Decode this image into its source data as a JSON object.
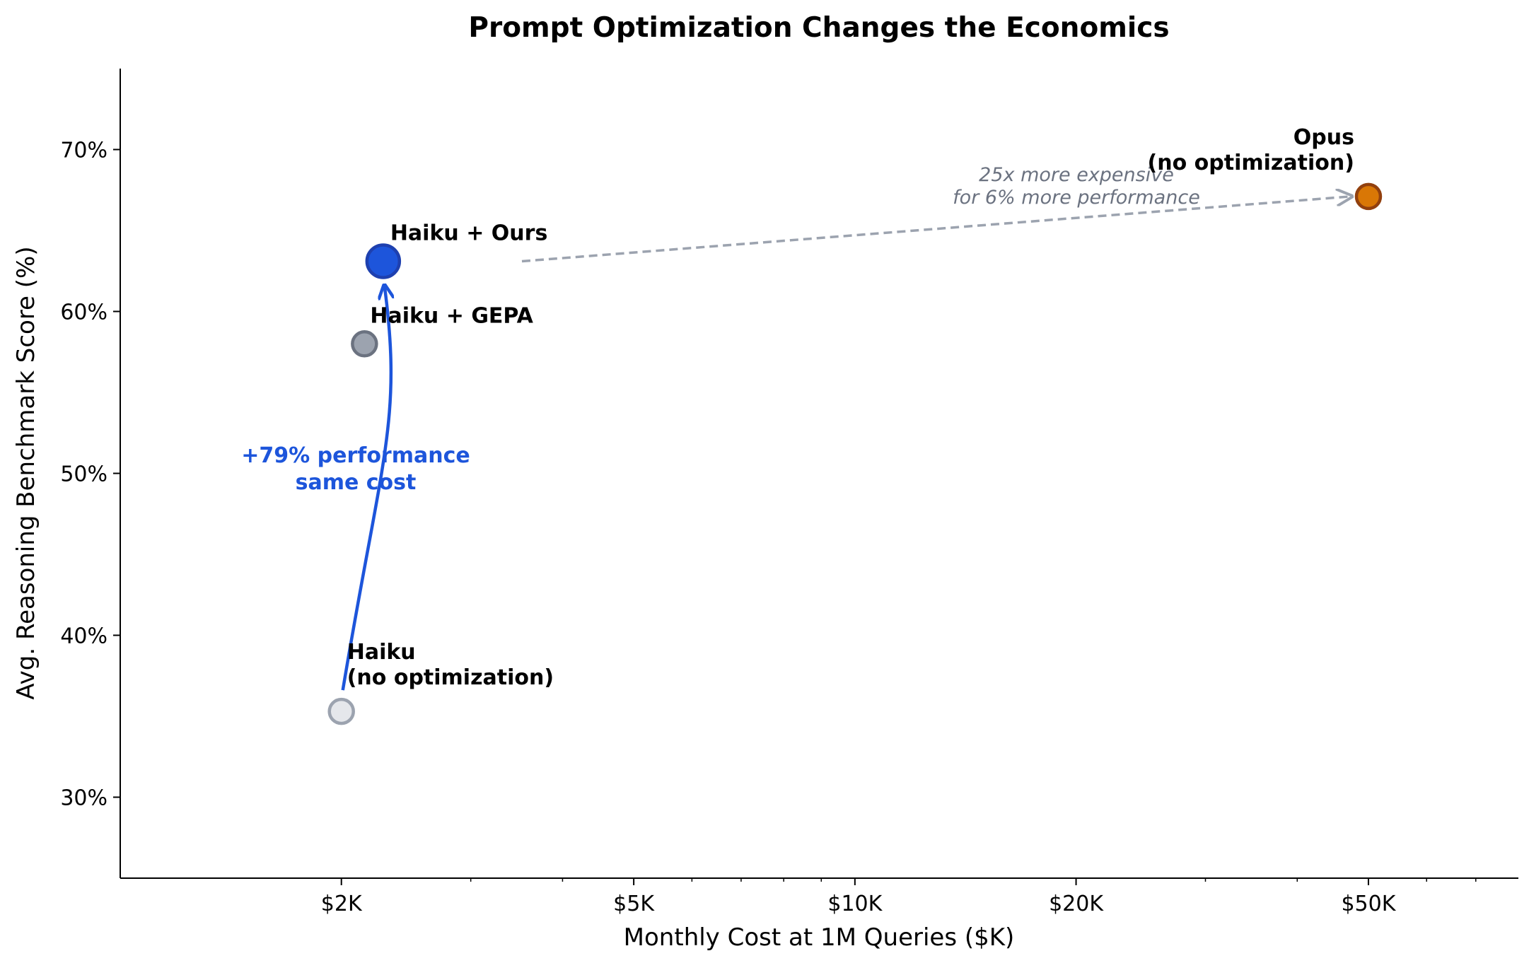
{
  "chart_data": {
    "type": "scatter",
    "title": "Prompt Optimization Changes the Economics",
    "xlabel": "Monthly Cost at 1M Queries ($K)",
    "ylabel": "Avg. Reasoning Benchmark Score (%)",
    "x_scale": "log",
    "xlim": [
      1000,
      80000
    ],
    "ylim": [
      25,
      75
    ],
    "x_ticks": [
      {
        "value": 2000,
        "label": "$2K"
      },
      {
        "value": 5000,
        "label": "$5K"
      },
      {
        "value": 10000,
        "label": "$10K"
      },
      {
        "value": 20000,
        "label": "$20K"
      },
      {
        "value": 50000,
        "label": "$50K"
      }
    ],
    "y_ticks": [
      {
        "value": 30,
        "label": "30%"
      },
      {
        "value": 40,
        "label": "40%"
      },
      {
        "value": 50,
        "label": "50%"
      },
      {
        "value": 60,
        "label": "60%"
      },
      {
        "value": 70,
        "label": "70%"
      }
    ],
    "points": [
      {
        "label_lines": [
          "Haiku",
          "(no optimization)"
        ],
        "x": 2000,
        "y": 35.3,
        "fill": "#e5e7eb",
        "stroke": "#9ca3af",
        "size": "medium"
      },
      {
        "label_lines": [
          "Haiku + GEPA"
        ],
        "x": 2150,
        "y": 58.0,
        "fill": "#9ca3af",
        "stroke": "#6b7280",
        "size": "medium"
      },
      {
        "label_lines": [
          "Haiku + Ours"
        ],
        "x": 2280,
        "y": 63.1,
        "fill": "#1d55db",
        "stroke": "#1e40af",
        "size": "large"
      },
      {
        "label_lines": [
          "Opus",
          "(no optimization)"
        ],
        "x": 50000,
        "y": 67.1,
        "fill": "#d97706",
        "stroke": "#92400e",
        "size": "medium"
      }
    ],
    "annotations": [
      {
        "lines": [
          "+79% performance",
          "same cost"
        ],
        "color": "#1d55db"
      },
      {
        "lines": [
          "25x more expensive",
          "for 6% more performance"
        ],
        "color": "#6b7280"
      }
    ],
    "grid": false
  }
}
